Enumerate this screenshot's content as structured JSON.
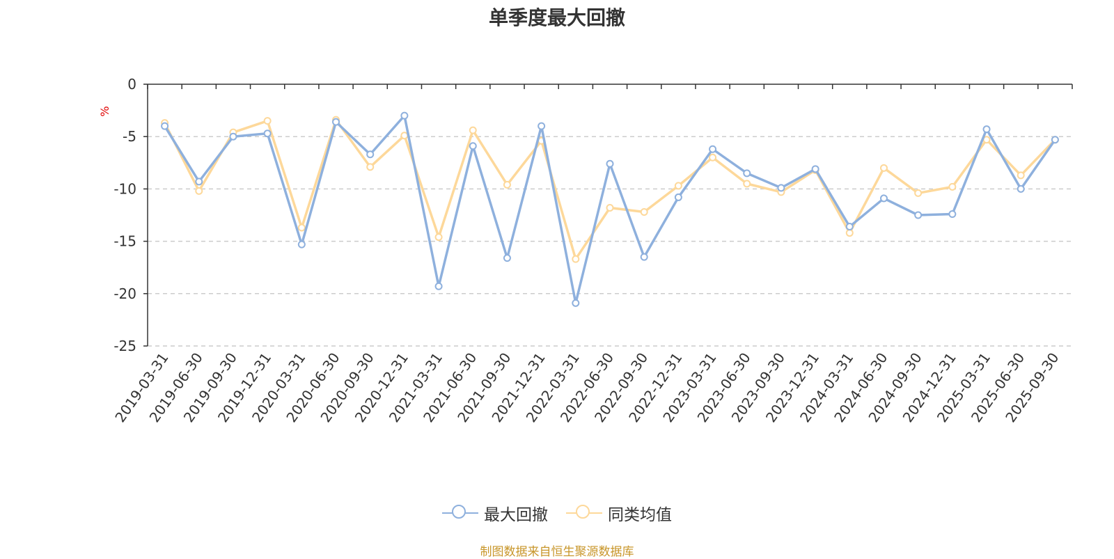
{
  "chart_data": {
    "type": "line",
    "title": "单季度最大回撤",
    "ylabel": "%",
    "xlabel": "",
    "ylim": [
      -25,
      0
    ],
    "yticks": [
      0,
      -5,
      -10,
      -15,
      -20,
      -25
    ],
    "grid": true,
    "legend_position": "bottom",
    "categories": [
      "2019-03-31",
      "2019-06-30",
      "2019-09-30",
      "2019-12-31",
      "2020-03-31",
      "2020-06-30",
      "2020-09-30",
      "2020-12-31",
      "2021-03-31",
      "2021-06-30",
      "2021-09-30",
      "2021-12-31",
      "2022-03-31",
      "2022-06-30",
      "2022-09-30",
      "2022-12-31",
      "2023-03-31",
      "2023-06-30",
      "2023-09-30",
      "2023-12-31",
      "2024-03-31",
      "2024-06-30",
      "2024-09-30",
      "2024-12-31",
      "2025-03-31",
      "2025-06-30",
      "2025-09-30"
    ],
    "series": [
      {
        "name": "最大回撤",
        "color": "#8eb0dd",
        "values": [
          -4.0,
          -9.3,
          -5.0,
          -4.7,
          -15.3,
          -3.6,
          -6.7,
          -3.0,
          -19.3,
          -5.9,
          -16.6,
          -4.0,
          -20.9,
          -7.6,
          -16.5,
          -10.8,
          -6.2,
          -8.5,
          -9.9,
          -8.1,
          -13.6,
          -10.9,
          -12.5,
          -12.4,
          -4.3,
          -10.0,
          -5.3
        ]
      },
      {
        "name": "同类均值",
        "color": "#fdd89a",
        "values": [
          -3.7,
          -10.2,
          -4.6,
          -3.5,
          -13.7,
          -3.4,
          -7.9,
          -4.9,
          -14.6,
          -4.4,
          -9.6,
          -5.4,
          -16.7,
          -11.8,
          -12.2,
          -9.7,
          -7.0,
          -9.5,
          -10.3,
          -8.2,
          -14.2,
          -8.0,
          -10.4,
          -9.8,
          -5.3,
          -8.7,
          -5.3
        ]
      }
    ]
  },
  "footer": {
    "source": "制图数据来自恒生聚源数据库"
  }
}
